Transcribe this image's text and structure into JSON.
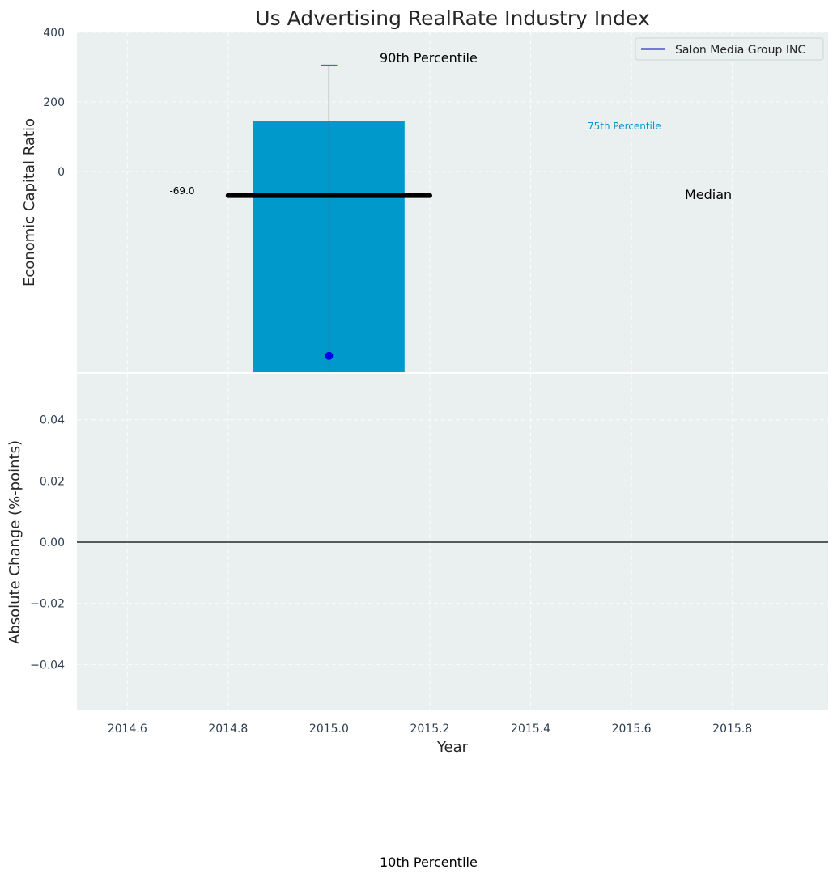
{
  "chart_data": {
    "type": "bar",
    "title": "Us Advertising RealRate Industry Index",
    "xlabel": "Year",
    "xlim": [
      2014.5,
      2015.99
    ],
    "xticks": [
      2014.6,
      2014.8,
      2015.0,
      2015.2,
      2015.4,
      2015.6,
      2015.8
    ],
    "xtick_labels": [
      "2014.6",
      "2014.8",
      "2015.0",
      "2015.2",
      "2015.4",
      "2015.6",
      "2015.8"
    ],
    "grid": true,
    "top_panel": {
      "ylabel": "Economic Capital Ratio",
      "ylim": [
        -577,
        400
      ],
      "yticks": [
        400,
        200,
        0
      ],
      "ytick_labels": [
        "400",
        "200",
        "0"
      ],
      "bar": {
        "x": 2015.0,
        "width": 0.3,
        "bottom": -577,
        "top": 145,
        "color": "#0099cc"
      },
      "errorbar": {
        "x": 2015.0,
        "low": -577,
        "high": 305,
        "cap_color": "#2e8b2e"
      },
      "median": {
        "x_start": 2014.8,
        "x_end": 2015.2,
        "value": -69,
        "label": "-69.0"
      },
      "company_point": {
        "x": 2015.0,
        "value": -530,
        "color": "#0000ee"
      },
      "legend": {
        "entry": "Salon Media Group INC",
        "color": "#0000cc",
        "position": "top-right"
      },
      "annotations": {
        "p90": "90th Percentile",
        "p75": "75th Percentile",
        "median": "Median",
        "p10": "10th Percentile"
      }
    },
    "bottom_panel": {
      "ylabel": "Absolute Change (%-points)",
      "ylim": [
        -0.055,
        0.055
      ],
      "yticks": [
        0.04,
        0.02,
        0.0,
        -0.02,
        -0.04
      ],
      "ytick_labels": [
        "0.04",
        "0.02",
        "0.00",
        "−0.02",
        "−0.04"
      ],
      "zero_line": 0.0
    }
  }
}
